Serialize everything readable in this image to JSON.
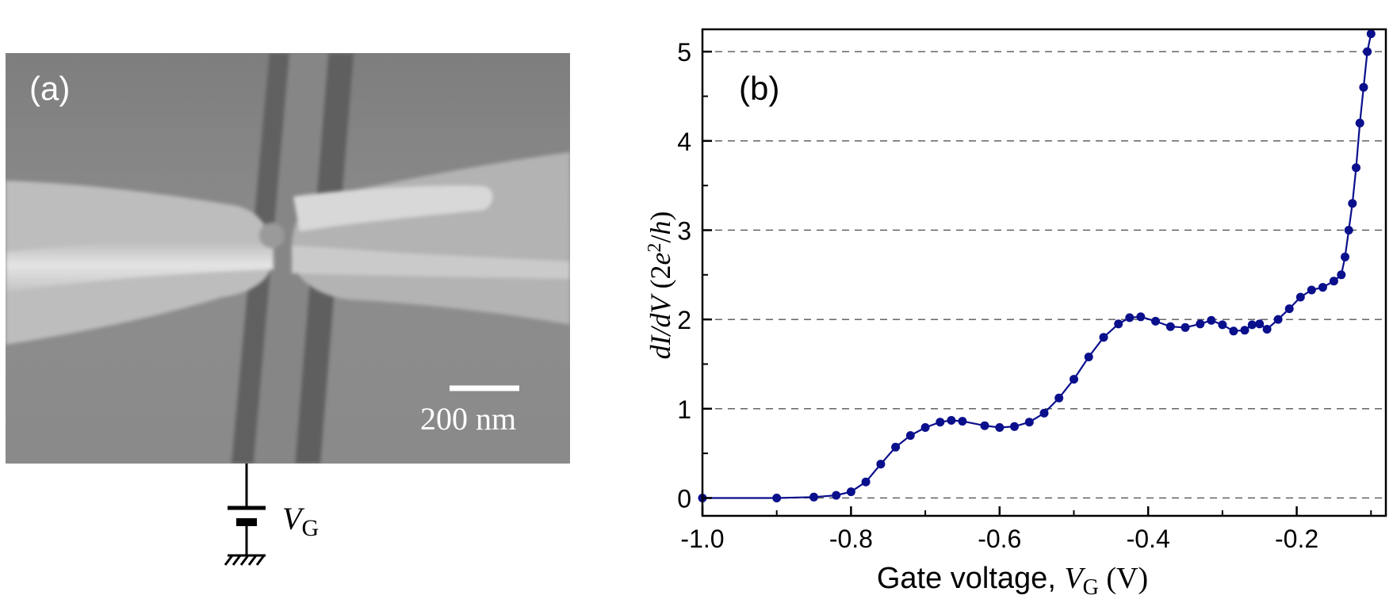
{
  "panel_a": {
    "label": "(a)",
    "scale_bar": "200 nm",
    "gate_symbol": "V",
    "gate_subscript": "G"
  },
  "colors": {
    "series": "#0a0f8c",
    "sem_background": "#8a8a8a"
  },
  "chart_data": {
    "type": "scatter",
    "panel_label": "(b)",
    "title": "",
    "xlabel": {
      "prefix": "Gate voltage, ",
      "symbol": "V",
      "subscript": "G",
      "unit": " (V)"
    },
    "ylabel": {
      "italic": "dI/dV",
      "paren_open": " (2",
      "e": "e",
      "sup": "2",
      "slash": "/",
      "h": "h",
      "paren_close": ")"
    },
    "xlim": [
      -1.0,
      -0.08
    ],
    "ylim": [
      -0.2,
      5.25
    ],
    "xticks": [
      -1.0,
      -0.8,
      -0.6,
      -0.4,
      -0.2
    ],
    "xtick_labels": [
      "-1.0",
      "-0.8",
      "-0.6",
      "-0.4",
      "-0.2"
    ],
    "yticks": [
      0,
      1,
      2,
      3,
      4,
      5
    ],
    "ytick_labels": [
      "0",
      "1",
      "2",
      "3",
      "4",
      "5"
    ],
    "grid": "horizontal dashed",
    "series": [
      {
        "name": "dI/dV",
        "marker": "circle",
        "line": true,
        "points": [
          [
            -1.0,
            0.0
          ],
          [
            -0.9,
            0.0
          ],
          [
            -0.85,
            0.01
          ],
          [
            -0.82,
            0.03
          ],
          [
            -0.8,
            0.07
          ],
          [
            -0.78,
            0.18
          ],
          [
            -0.76,
            0.38
          ],
          [
            -0.74,
            0.57
          ],
          [
            -0.72,
            0.7
          ],
          [
            -0.7,
            0.79
          ],
          [
            -0.68,
            0.85
          ],
          [
            -0.665,
            0.87
          ],
          [
            -0.65,
            0.86
          ],
          [
            -0.62,
            0.81
          ],
          [
            -0.6,
            0.79
          ],
          [
            -0.58,
            0.8
          ],
          [
            -0.56,
            0.85
          ],
          [
            -0.54,
            0.95
          ],
          [
            -0.52,
            1.12
          ],
          [
            -0.5,
            1.33
          ],
          [
            -0.48,
            1.58
          ],
          [
            -0.46,
            1.8
          ],
          [
            -0.44,
            1.95
          ],
          [
            -0.425,
            2.02
          ],
          [
            -0.41,
            2.03
          ],
          [
            -0.39,
            1.98
          ],
          [
            -0.37,
            1.92
          ],
          [
            -0.35,
            1.91
          ],
          [
            -0.33,
            1.95
          ],
          [
            -0.315,
            1.99
          ],
          [
            -0.3,
            1.94
          ],
          [
            -0.285,
            1.87
          ],
          [
            -0.27,
            1.88
          ],
          [
            -0.26,
            1.94
          ],
          [
            -0.25,
            1.95
          ],
          [
            -0.24,
            1.89
          ],
          [
            -0.225,
            2.0
          ],
          [
            -0.21,
            2.12
          ],
          [
            -0.195,
            2.25
          ],
          [
            -0.18,
            2.33
          ],
          [
            -0.165,
            2.36
          ],
          [
            -0.15,
            2.43
          ],
          [
            -0.14,
            2.5
          ],
          [
            -0.135,
            2.7
          ],
          [
            -0.13,
            3.0
          ],
          [
            -0.125,
            3.3
          ],
          [
            -0.12,
            3.7
          ],
          [
            -0.115,
            4.2
          ],
          [
            -0.11,
            4.6
          ],
          [
            -0.105,
            5.0
          ],
          [
            -0.1,
            5.2
          ]
        ]
      }
    ]
  }
}
